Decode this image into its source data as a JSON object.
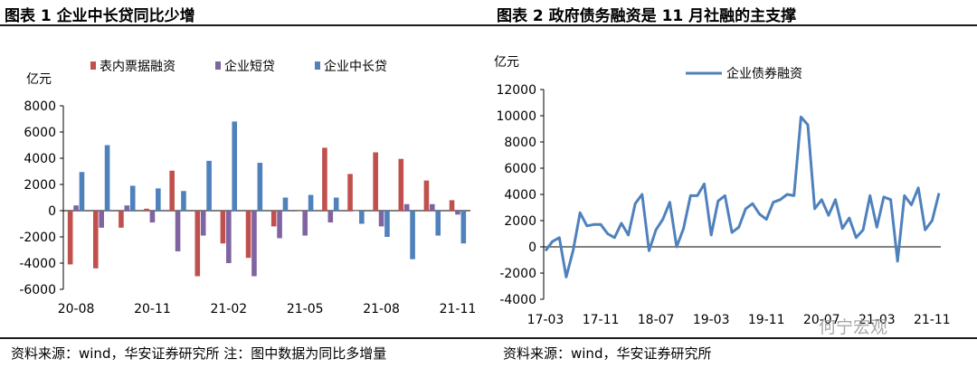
{
  "figures": {
    "left": {
      "title": "图表 1 企业中长贷同比少增",
      "source": "资料来源：wind，华安证券研究所 注：图中数据为同比多增量"
    },
    "right": {
      "title": "图表 2 政府债务融资是 11 月社融的主支撑",
      "source": "资料来源：wind，华安证券研究所"
    }
  },
  "watermark": "何宁宏观",
  "chart_data": [
    {
      "type": "bar",
      "ylabel": "亿元",
      "ylim": [
        -6000,
        8000
      ],
      "yticks": [
        -6000,
        -4000,
        -2000,
        0,
        2000,
        4000,
        6000,
        8000
      ],
      "legend_position": "top",
      "categories": [
        "20-08",
        "20-09",
        "20-10",
        "20-11",
        "20-12",
        "21-01",
        "21-02",
        "21-03",
        "21-04",
        "21-05",
        "21-06",
        "21-07",
        "21-08",
        "21-09",
        "21-10",
        "21-11"
      ],
      "xtick_labels": [
        "20-08",
        "20-11",
        "21-02",
        "21-05",
        "21-08",
        "21-11"
      ],
      "xtick_indices": [
        0,
        3,
        6,
        9,
        12,
        15
      ],
      "series": [
        {
          "name": "表内票据融资",
          "color": "#C0504D",
          "values": [
            -4100,
            -4400,
            -1300,
            150,
            3050,
            -5000,
            -2500,
            -3600,
            -1200,
            -50,
            4800,
            2800,
            4450,
            3950,
            2300,
            800
          ]
        },
        {
          "name": "企业短贷",
          "color": "#8064A2",
          "values": [
            400,
            -1300,
            400,
            -900,
            -3100,
            -1900,
            -4000,
            -5000,
            -2100,
            -1900,
            -900,
            0,
            -1200,
            500,
            500,
            -300
          ]
        },
        {
          "name": "企业中长贷",
          "color": "#4F81BD",
          "values": [
            2950,
            5000,
            1900,
            1700,
            1500,
            3800,
            6800,
            3650,
            1000,
            1200,
            1000,
            -1000,
            -2000,
            -3700,
            -1900,
            -2500
          ]
        }
      ]
    },
    {
      "type": "line",
      "ylabel": "亿元",
      "ylim": [
        -4000,
        12000
      ],
      "yticks": [
        -4000,
        -2000,
        0,
        2000,
        4000,
        6000,
        8000,
        10000,
        12000
      ],
      "legend_position": "top",
      "xtick_labels": [
        "17-03",
        "17-11",
        "18-07",
        "19-03",
        "19-11",
        "20-07",
        "21-03",
        "21-11"
      ],
      "xtick_indices": [
        0,
        8,
        16,
        24,
        32,
        40,
        48,
        56
      ],
      "series": [
        {
          "name": "企业债券融资",
          "color": "#4F81BD",
          "values": [
            -300,
            400,
            700,
            -2300,
            -300,
            2600,
            1600,
            1700,
            1700,
            1000,
            700,
            1800,
            900,
            3300,
            4000,
            -300,
            1300,
            2100,
            3400,
            0,
            1400,
            3900,
            3900,
            4800,
            900,
            3500,
            3900,
            1100,
            1500,
            2900,
            3300,
            2500,
            2100,
            3400,
            3600,
            4000,
            3900,
            9900,
            9300,
            2900,
            3600,
            2400,
            3600,
            1400,
            2200,
            700,
            1300,
            3900,
            1500,
            3800,
            3600,
            -1100,
            3900,
            3200,
            4500,
            1300,
            2000,
            4100
          ]
        }
      ]
    }
  ]
}
